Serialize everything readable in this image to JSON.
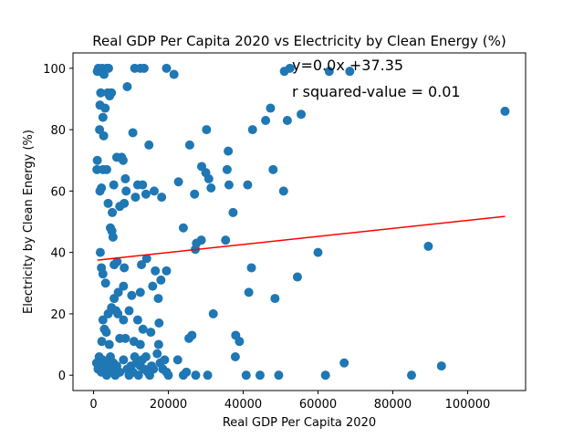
{
  "chart_data": {
    "type": "scatter",
    "title": "Real GDP Per Capita 2020 vs Electricity by Clean Energy (%)",
    "xlabel": "Real GDP Per Capita 2020",
    "ylabel": "Electricity by Clean Energy (%)",
    "xlim": [
      -5500,
      115500
    ],
    "ylim": [
      -5,
      105
    ],
    "x_ticks": [
      0,
      20000,
      40000,
      60000,
      80000,
      100000
    ],
    "y_ticks": [
      0,
      20,
      40,
      60,
      80,
      100
    ],
    "grid": false,
    "point_color": "#1f77b4",
    "line_color": "#ff0000",
    "regression": {
      "slope": 0.000131,
      "intercept": 37.35,
      "x_range": [
        1000,
        110000
      ],
      "equation_label": "y=0.0x +37.35",
      "r_squared_label": "r squared-value = 0.01"
    },
    "points": [
      [
        1000,
        99
      ],
      [
        1300,
        100
      ],
      [
        1800,
        99
      ],
      [
        2300,
        100
      ],
      [
        2800,
        98
      ],
      [
        4000,
        100
      ],
      [
        3500,
        100
      ],
      [
        1700,
        88
      ],
      [
        2500,
        84
      ],
      [
        1900,
        92
      ],
      [
        3800,
        92
      ],
      [
        4300,
        91
      ],
      [
        4800,
        92
      ],
      [
        3100,
        87
      ],
      [
        2700,
        78
      ],
      [
        1600,
        80
      ],
      [
        9000,
        94
      ],
      [
        11000,
        100
      ],
      [
        12500,
        100
      ],
      [
        13500,
        100
      ],
      [
        19500,
        100
      ],
      [
        21500,
        98
      ],
      [
        10500,
        79
      ],
      [
        6200,
        71
      ],
      [
        7500,
        71
      ],
      [
        7900,
        70
      ],
      [
        900,
        67
      ],
      [
        2500,
        67
      ],
      [
        3500,
        67
      ],
      [
        2100,
        61
      ],
      [
        1700,
        60
      ],
      [
        3900,
        56
      ],
      [
        5400,
        62
      ],
      [
        8500,
        64
      ],
      [
        8700,
        60
      ],
      [
        11200,
        58
      ],
      [
        11800,
        62
      ],
      [
        13100,
        62
      ],
      [
        14000,
        59
      ],
      [
        14800,
        75
      ],
      [
        16200,
        60
      ],
      [
        18200,
        58
      ],
      [
        8200,
        56
      ],
      [
        4500,
        48
      ],
      [
        4900,
        47
      ],
      [
        5200,
        45
      ],
      [
        5000,
        53
      ],
      [
        7000,
        55
      ],
      [
        1800,
        40
      ],
      [
        2100,
        35
      ],
      [
        2500,
        33
      ],
      [
        3200,
        30
      ],
      [
        5500,
        36
      ],
      [
        6300,
        37
      ],
      [
        8200,
        35
      ],
      [
        12800,
        36
      ],
      [
        14200,
        38
      ],
      [
        16500,
        34
      ],
      [
        19500,
        34
      ],
      [
        18000,
        31
      ],
      [
        15800,
        29
      ],
      [
        17300,
        25
      ],
      [
        12500,
        27
      ],
      [
        10200,
        26
      ],
      [
        8000,
        29
      ],
      [
        6600,
        27
      ],
      [
        5500,
        25
      ],
      [
        4800,
        22
      ],
      [
        3900,
        20
      ],
      [
        6000,
        21
      ],
      [
        6500,
        20
      ],
      [
        8000,
        18
      ],
      [
        9500,
        21
      ],
      [
        11800,
        18
      ],
      [
        13200,
        15
      ],
      [
        15300,
        14
      ],
      [
        17500,
        17
      ],
      [
        2500,
        18
      ],
      [
        2900,
        15
      ],
      [
        3400,
        14
      ],
      [
        2200,
        11
      ],
      [
        4200,
        10
      ],
      [
        7000,
        12
      ],
      [
        8500,
        12
      ],
      [
        10800,
        11
      ],
      [
        12500,
        10
      ],
      [
        17400,
        10
      ],
      [
        22500,
        5
      ],
      [
        25500,
        12
      ],
      [
        26300,
        13
      ],
      [
        24000,
        48
      ],
      [
        22700,
        63
      ],
      [
        25700,
        75
      ],
      [
        27000,
        59
      ],
      [
        27200,
        41
      ],
      [
        27500,
        43
      ],
      [
        28800,
        44
      ],
      [
        28900,
        68
      ],
      [
        30000,
        66
      ],
      [
        30200,
        80
      ],
      [
        30800,
        64
      ],
      [
        31400,
        61
      ],
      [
        32000,
        20
      ],
      [
        35300,
        44
      ],
      [
        35700,
        67
      ],
      [
        36000,
        73
      ],
      [
        36200,
        62
      ],
      [
        37300,
        53
      ],
      [
        38000,
        13
      ],
      [
        39000,
        11
      ],
      [
        37900,
        6
      ],
      [
        40800,
        0
      ],
      [
        41200,
        62
      ],
      [
        41500,
        27
      ],
      [
        42200,
        35
      ],
      [
        42500,
        80
      ],
      [
        44500,
        0
      ],
      [
        46000,
        83
      ],
      [
        47300,
        87
      ],
      [
        48000,
        67
      ],
      [
        48500,
        25
      ],
      [
        49500,
        0
      ],
      [
        51000,
        99
      ],
      [
        51800,
        83
      ],
      [
        52500,
        100
      ],
      [
        54500,
        32
      ],
      [
        55500,
        85
      ],
      [
        50800,
        60
      ],
      [
        60000,
        40
      ],
      [
        62000,
        0
      ],
      [
        63000,
        99
      ],
      [
        67000,
        4
      ],
      [
        68500,
        99
      ],
      [
        85000,
        0
      ],
      [
        89500,
        42
      ],
      [
        93000,
        3
      ],
      [
        110000,
        86
      ],
      [
        800,
        4
      ],
      [
        1200,
        2
      ],
      [
        1500,
        6
      ],
      [
        1900,
        3
      ],
      [
        2100,
        1
      ],
      [
        2400,
        5
      ],
      [
        2800,
        2
      ],
      [
        3100,
        4
      ],
      [
        3500,
        0
      ],
      [
        3800,
        3
      ],
      [
        4100,
        1
      ],
      [
        4500,
        6
      ],
      [
        4900,
        2
      ],
      [
        5300,
        4
      ],
      [
        5800,
        0
      ],
      [
        6200,
        3
      ],
      [
        7000,
        1
      ],
      [
        8000,
        5
      ],
      [
        9000,
        2
      ],
      [
        9500,
        0
      ],
      [
        10000,
        3
      ],
      [
        10500,
        1
      ],
      [
        11000,
        6
      ],
      [
        11500,
        4
      ],
      [
        12000,
        0
      ],
      [
        12500,
        3
      ],
      [
        13000,
        5
      ],
      [
        13500,
        2
      ],
      [
        14000,
        6
      ],
      [
        14500,
        1
      ],
      [
        15000,
        0
      ],
      [
        15500,
        3
      ],
      [
        16000,
        2
      ],
      [
        17000,
        7
      ],
      [
        17800,
        4
      ],
      [
        18500,
        2
      ],
      [
        19000,
        5
      ],
      [
        19500,
        1
      ],
      [
        20000,
        0
      ],
      [
        24000,
        0
      ],
      [
        24800,
        1
      ],
      [
        27300,
        0
      ],
      [
        30500,
        0
      ],
      [
        1000,
        70
      ],
      [
        9500,
        1
      ]
    ]
  }
}
